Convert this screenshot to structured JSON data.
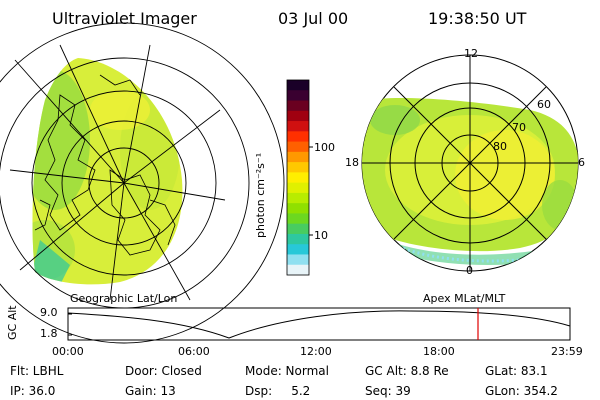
{
  "header": {
    "title": "Ultraviolet Imager",
    "date": "03 Jul 00",
    "time": "19:38:50 UT"
  },
  "colorbar": {
    "label": "photon cm⁻²s⁻¹",
    "ticks": [
      "100",
      "10"
    ],
    "colors": [
      "#1a0028",
      "#3a0030",
      "#6a0020",
      "#a00010",
      "#d01010",
      "#ff3000",
      "#ff6000",
      "#ff9800",
      "#ffc800",
      "#ffee00",
      "#e0f000",
      "#b8ec00",
      "#90e000",
      "#6cd820",
      "#48cc60",
      "#2ec8a0",
      "#28c8d8",
      "#90e0f0",
      "#e8f4f8"
    ]
  },
  "left_panel": {
    "label": "Geographic Lat/Lon"
  },
  "right_panel": {
    "label": "Apex MLat/MLT",
    "mlt_labels": [
      "12",
      "18",
      "6",
      "0"
    ],
    "lat_labels": [
      "60",
      "70",
      "80"
    ]
  },
  "timeline": {
    "axis_label": "GC Alt",
    "y_ticks": [
      "9.0",
      "1.8"
    ],
    "x_ticks": [
      "00:00",
      "06:00",
      "12:00",
      "18:00",
      "23:59"
    ],
    "current_marker_time": "19:38:50"
  },
  "info": {
    "row1": [
      "Flt: LBHL",
      "Door: Closed",
      "Mode: Normal",
      "GC Alt: 8.8 Re",
      "GLat: 83.1"
    ],
    "row2": [
      "IP: 36.0",
      "Gain: 13",
      "Dsp:     5.2",
      "Seq: 39",
      "GLon: 354.2"
    ]
  }
}
